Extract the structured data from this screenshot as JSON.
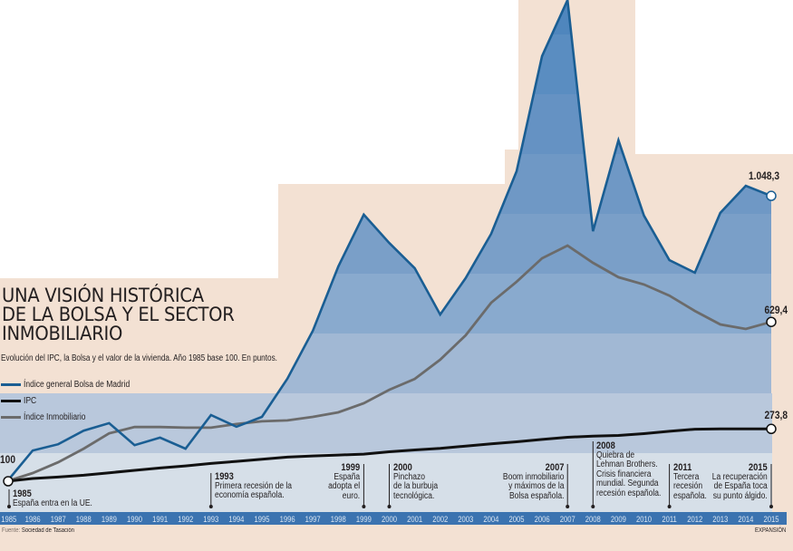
{
  "title_lines": [
    "UNA VISIÓN HISTÓRICA",
    "DE LA BOLSA Y EL SECTOR",
    "INMOBILIARIO"
  ],
  "subtitle": "Evolución del IPC, la Bolsa y el valor de la vivienda. Año 1985  base 100. En puntos.",
  "start_label": "100",
  "source_prefix": "Fuente:",
  "source_name": "Sociedad de Tasación",
  "brand": "EXPANSIÓN",
  "colors": {
    "background": "#f3e1d3",
    "bolsa_line": "#1a5e93",
    "ipc_line": "#111111",
    "inmobiliario_line": "#6b6b6b",
    "axis_bar": "#3b73b0"
  },
  "annotations": [
    {
      "year": "1985",
      "lines": [
        "España entra en la UE."
      ],
      "align": "left"
    },
    {
      "year": "1993",
      "lines": [
        "Primera recesión de la",
        "economía española."
      ],
      "align": "left"
    },
    {
      "year": "1999",
      "lines": [
        "España",
        "adopta el",
        "euro."
      ],
      "align": "right"
    },
    {
      "year": "2000",
      "lines": [
        "Pinchazo",
        "de la burbuja",
        "tecnológica."
      ],
      "align": "left"
    },
    {
      "year": "2007",
      "lines": [
        "Boom inmobiliario",
        "y máximos de la",
        "Bolsa española."
      ],
      "align": "right"
    },
    {
      "year": "2008",
      "lines": [
        "Quiebra de",
        "Lehman Brothers.",
        "Crisis financiera",
        "mundial. Segunda",
        "recesión española."
      ],
      "align": "left"
    },
    {
      "year": "2011",
      "lines": [
        "Tercera",
        "recesión",
        "española."
      ],
      "align": "left"
    },
    {
      "year": "2015",
      "lines": [
        "La recuperación",
        "de España toca",
        "su punto álgido."
      ],
      "align": "right"
    }
  ],
  "chart_data": {
    "type": "area",
    "title": "UNA VISIÓN HISTÓRICA DE LA BOLSA Y EL SECTOR INMOBILIARIO",
    "xlabel": "",
    "ylabel": "En puntos",
    "ylim": [
      0,
      1750
    ],
    "x": [
      "1985",
      "1986",
      "1987",
      "1988",
      "1989",
      "1990",
      "1991",
      "1992",
      "1993",
      "1994",
      "1995",
      "1996",
      "1997",
      "1998",
      "1999",
      "2000",
      "2001",
      "2002",
      "2003",
      "2004",
      "2005",
      "2006",
      "2007",
      "2008",
      "2009",
      "2010",
      "2011",
      "2012",
      "2013",
      "2014",
      "2015"
    ],
    "series": [
      {
        "name": "Índice general Bolsa de Madrid",
        "end_label": "1.048,3",
        "values": [
          100,
          202,
          223,
          268,
          293,
          220,
          245,
          208,
          320,
          281,
          314,
          441,
          600,
          814,
          986,
          892,
          808,
          654,
          775,
          922,
          1130,
          1513,
          1699,
          931,
          1233,
          983,
          835,
          793,
          992,
          1082,
          1048.3
        ]
      },
      {
        "name": "IPC",
        "end_label": "273,8",
        "values": [
          100,
          109,
          114,
          120,
          128,
          136,
          144,
          151,
          159,
          166,
          173,
          180,
          184,
          187,
          190,
          198,
          204,
          209,
          217,
          224,
          231,
          239,
          246,
          250,
          252,
          258,
          266,
          273,
          274,
          274,
          273.8
        ]
      },
      {
        "name": "Índice Inmobiliario",
        "end_label": "629,4",
        "values": [
          100,
          127,
          163,
          208,
          259,
          280,
          280,
          278,
          278,
          290,
          299,
          302,
          314,
          329,
          359,
          404,
          440,
          504,
          585,
          693,
          763,
          841,
          883,
          826,
          778,
          754,
          717,
          666,
          621,
          606,
          629.4
        ]
      }
    ]
  }
}
